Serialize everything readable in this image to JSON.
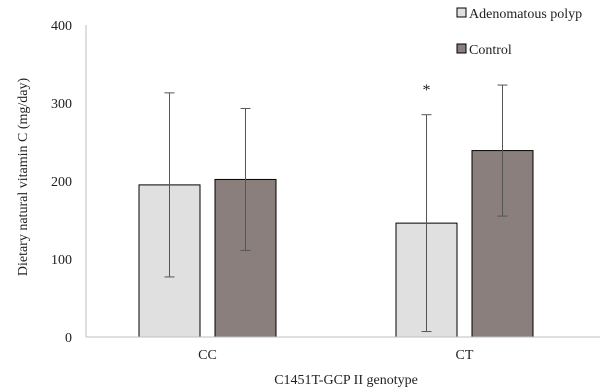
{
  "chart_data": {
    "type": "bar",
    "title": "",
    "xlabel": "C1451T-GCP II genotype",
    "ylabel": "Dietary natural vitamin C (mg/day)",
    "categories": [
      "CC",
      "CT"
    ],
    "ylim": [
      0,
      400
    ],
    "yticks": [
      0,
      100,
      200,
      300,
      400
    ],
    "grid": false,
    "legend_position": "top-right",
    "series": [
      {
        "name": "Adenomatous polyp",
        "color": "#e0e0e0",
        "values": [
          195,
          146
        ],
        "error": [
          118,
          139
        ]
      },
      {
        "name": "Control",
        "color": "#8a7f7d",
        "values": [
          202,
          239
        ],
        "error": [
          91,
          84
        ]
      }
    ],
    "annotations": [
      {
        "text": "*",
        "category": "CT",
        "series": "Adenomatous polyp"
      }
    ]
  }
}
